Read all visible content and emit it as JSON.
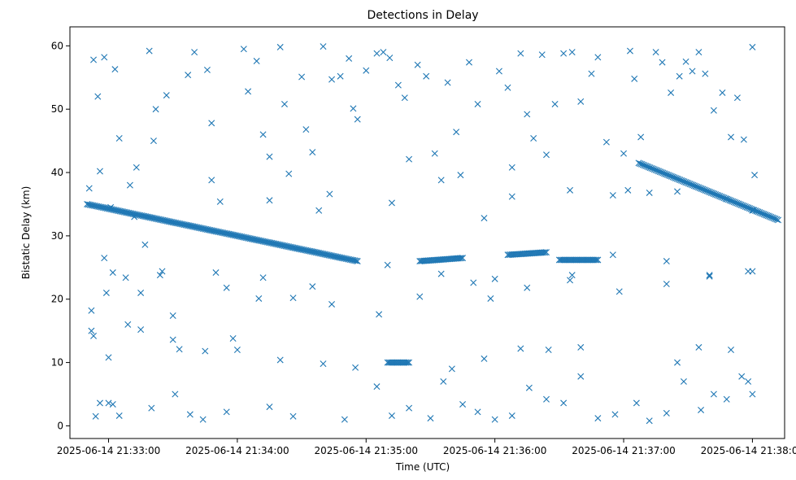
{
  "chart_data": {
    "type": "scatter",
    "title": "Detections in Delay",
    "xlabel": "Time (UTC)",
    "ylabel": "Bistatic Delay (km)",
    "x_unit": "time",
    "xlim": [
      "2025-06-14 21:32:42",
      "2025-06-14 21:38:15"
    ],
    "ylim": [
      -2,
      63
    ],
    "x_ticks": [
      "2025-06-14 21:33:00",
      "2025-06-14 21:34:00",
      "2025-06-14 21:35:00",
      "2025-06-14 21:36:00",
      "2025-06-14 21:37:00",
      "2025-06-14 21:38:00"
    ],
    "y_ticks": [
      0,
      10,
      20,
      30,
      40,
      50,
      60
    ],
    "marker": "x",
    "grid": false,
    "legend": "none",
    "color": "#1f77b4",
    "tracks": [
      {
        "description": "target track 1",
        "x_start": "2025-06-14 21:32:50",
        "x_end": "2025-06-14 21:34:56",
        "y_start": 35.0,
        "y_end": 26.0
      },
      {
        "description": "target track 2",
        "x_start": "2025-06-14 21:35:25",
        "x_end": "2025-06-14 21:35:45",
        "y_start": 26.0,
        "y_end": 26.5
      },
      {
        "description": "target track 3",
        "x_start": "2025-06-14 21:36:06",
        "x_end": "2025-06-14 21:36:24",
        "y_start": 27.0,
        "y_end": 27.4
      },
      {
        "description": "target track 4",
        "x_start": "2025-06-14 21:36:30",
        "x_end": "2025-06-14 21:36:48",
        "y_start": 26.2,
        "y_end": 26.2
      },
      {
        "description": "target track 5",
        "x_start": "2025-06-14 21:37:07",
        "x_end": "2025-06-14 21:38:12",
        "y_start": 41.5,
        "y_end": 32.5
      },
      {
        "description": "clutter band",
        "x_start": "2025-06-14 21:35:10",
        "x_end": "2025-06-14 21:35:20",
        "y_start": 10.0,
        "y_end": 10.0
      }
    ],
    "scatter_points": [
      [
        "21:32:51",
        37.5
      ],
      [
        "21:32:52",
        18.2
      ],
      [
        "21:32:53",
        57.8
      ],
      [
        "21:32:55",
        52.0
      ],
      [
        "21:32:56",
        40.2
      ],
      [
        "21:32:58",
        58.2
      ],
      [
        "21:33:03",
        56.3
      ],
      [
        "21:33:05",
        45.4
      ],
      [
        "21:33:01",
        34.5
      ],
      [
        "21:32:54",
        1.5
      ],
      [
        "21:32:56",
        3.6
      ],
      [
        "21:33:00",
        3.6
      ],
      [
        "21:33:02",
        3.4
      ],
      [
        "21:33:00",
        10.8
      ],
      [
        "21:32:52",
        15.0
      ],
      [
        "21:32:53",
        14.2
      ],
      [
        "21:32:58",
        26.5
      ],
      [
        "21:33:02",
        24.2
      ],
      [
        "21:33:09",
        16.0
      ],
      [
        "21:33:10",
        38.0
      ],
      [
        "21:33:13",
        40.8
      ],
      [
        "21:33:15",
        21.0
      ],
      [
        "21:33:17",
        28.6
      ],
      [
        "21:33:19",
        59.2
      ],
      [
        "21:33:21",
        45.0
      ],
      [
        "21:33:22",
        50.0
      ],
      [
        "21:33:27",
        52.2
      ],
      [
        "21:33:24",
        23.8
      ],
      [
        "21:33:30",
        17.4
      ],
      [
        "21:33:31",
        5.0
      ],
      [
        "21:33:33",
        12.1
      ],
      [
        "21:33:37",
        55.4
      ],
      [
        "21:33:40",
        59.0
      ],
      [
        "21:33:46",
        56.2
      ],
      [
        "21:33:48",
        47.8
      ],
      [
        "21:33:52",
        35.4
      ],
      [
        "21:33:55",
        21.8
      ],
      [
        "21:33:58",
        13.8
      ],
      [
        "21:34:03",
        59.5
      ],
      [
        "21:34:05",
        52.8
      ],
      [
        "21:34:09",
        57.6
      ],
      [
        "21:34:12",
        46.0
      ],
      [
        "21:34:15",
        42.5
      ],
      [
        "21:34:20",
        59.8
      ],
      [
        "21:34:22",
        50.8
      ],
      [
        "21:34:24",
        39.8
      ],
      [
        "21:34:26",
        20.2
      ],
      [
        "21:34:30",
        55.1
      ],
      [
        "21:34:32",
        46.8
      ],
      [
        "21:34:35",
        43.2
      ],
      [
        "21:34:38",
        34.0
      ],
      [
        "21:34:40",
        59.9
      ],
      [
        "21:34:44",
        54.7
      ],
      [
        "21:34:48",
        55.2
      ],
      [
        "21:34:52",
        58.0
      ],
      [
        "21:34:54",
        50.1
      ],
      [
        "21:34:56",
        48.4
      ],
      [
        "21:35:00",
        56.1
      ],
      [
        "21:35:05",
        58.8
      ],
      [
        "21:35:08",
        59.0
      ],
      [
        "21:35:11",
        58.1
      ],
      [
        "21:35:15",
        53.8
      ],
      [
        "21:35:18",
        51.8
      ],
      [
        "21:35:20",
        42.1
      ],
      [
        "21:35:24",
        57.0
      ],
      [
        "21:35:28",
        55.2
      ],
      [
        "21:35:32",
        43.0
      ],
      [
        "21:35:38",
        54.2
      ],
      [
        "21:35:42",
        46.4
      ],
      [
        "21:35:44",
        39.6
      ],
      [
        "21:35:48",
        57.4
      ],
      [
        "21:35:52",
        50.8
      ],
      [
        "21:35:55",
        32.8
      ],
      [
        "21:35:58",
        20.1
      ],
      [
        "21:36:02",
        56.0
      ],
      [
        "21:36:06",
        53.4
      ],
      [
        "21:36:08",
        40.8
      ],
      [
        "21:36:12",
        58.8
      ],
      [
        "21:36:15",
        49.2
      ],
      [
        "21:36:18",
        45.4
      ],
      [
        "21:36:22",
        58.6
      ],
      [
        "21:36:24",
        42.8
      ],
      [
        "21:36:28",
        50.8
      ],
      [
        "21:36:32",
        58.8
      ],
      [
        "21:36:36",
        59.0
      ],
      [
        "21:36:40",
        51.2
      ],
      [
        "21:36:45",
        55.6
      ],
      [
        "21:36:48",
        58.2
      ],
      [
        "21:36:52",
        44.8
      ],
      [
        "21:36:55",
        36.4
      ],
      [
        "21:37:00",
        43.0
      ],
      [
        "21:37:03",
        59.2
      ],
      [
        "21:37:05",
        54.8
      ],
      [
        "21:37:08",
        45.6
      ],
      [
        "21:37:12",
        36.8
      ],
      [
        "21:37:15",
        59.0
      ],
      [
        "21:37:18",
        57.4
      ],
      [
        "21:37:22",
        52.6
      ],
      [
        "21:37:26",
        55.2
      ],
      [
        "21:37:29",
        57.5
      ],
      [
        "21:37:32",
        56.0
      ],
      [
        "21:37:35",
        59.0
      ],
      [
        "21:37:38",
        55.6
      ],
      [
        "21:37:42",
        49.8
      ],
      [
        "21:37:46",
        52.6
      ],
      [
        "21:37:50",
        45.6
      ],
      [
        "21:37:53",
        51.8
      ],
      [
        "21:37:56",
        45.2
      ],
      [
        "21:38:00",
        59.8
      ],
      [
        "21:38:01",
        39.6
      ],
      [
        "21:33:05",
        1.6
      ],
      [
        "21:33:20",
        2.8
      ],
      [
        "21:33:38",
        1.8
      ],
      [
        "21:33:44",
        1.0
      ],
      [
        "21:33:55",
        2.2
      ],
      [
        "21:34:15",
        3.0
      ],
      [
        "21:34:26",
        1.5
      ],
      [
        "21:34:50",
        1.0
      ],
      [
        "21:35:05",
        6.2
      ],
      [
        "21:35:12",
        1.6
      ],
      [
        "21:35:20",
        2.8
      ],
      [
        "21:35:30",
        1.2
      ],
      [
        "21:35:36",
        7.0
      ],
      [
        "21:35:45",
        3.4
      ],
      [
        "21:35:52",
        2.2
      ],
      [
        "21:36:00",
        1.0
      ],
      [
        "21:36:08",
        1.6
      ],
      [
        "21:36:16",
        6.0
      ],
      [
        "21:36:24",
        4.2
      ],
      [
        "21:36:32",
        3.6
      ],
      [
        "21:36:40",
        7.8
      ],
      [
        "21:36:48",
        1.2
      ],
      [
        "21:36:56",
        1.8
      ],
      [
        "21:37:06",
        3.6
      ],
      [
        "21:37:12",
        0.8
      ],
      [
        "21:37:20",
        2.0
      ],
      [
        "21:37:28",
        7.0
      ],
      [
        "21:37:36",
        2.5
      ],
      [
        "21:37:42",
        5.0
      ],
      [
        "21:37:48",
        4.2
      ],
      [
        "21:37:55",
        7.8
      ],
      [
        "21:38:00",
        5.0
      ],
      [
        "21:37:58",
        7.0
      ],
      [
        "21:37:35",
        12.4
      ],
      [
        "21:37:50",
        12.0
      ],
      [
        "21:37:25",
        10.0
      ],
      [
        "21:36:40",
        12.4
      ],
      [
        "21:36:25",
        12.0
      ],
      [
        "21:36:12",
        12.2
      ],
      [
        "21:35:55",
        10.6
      ],
      [
        "21:35:40",
        9.0
      ],
      [
        "21:34:55",
        9.2
      ],
      [
        "21:34:40",
        9.8
      ],
      [
        "21:34:20",
        10.4
      ],
      [
        "21:34:00",
        12.0
      ],
      [
        "21:33:45",
        11.8
      ],
      [
        "21:33:30",
        13.6
      ],
      [
        "21:33:15",
        15.2
      ],
      [
        "21:34:10",
        20.1
      ],
      [
        "21:34:44",
        19.2
      ],
      [
        "21:35:06",
        17.6
      ],
      [
        "21:35:25",
        20.4
      ],
      [
        "21:35:50",
        22.6
      ],
      [
        "21:36:15",
        21.8
      ],
      [
        "21:36:36",
        23.8
      ],
      [
        "21:36:58",
        21.2
      ],
      [
        "21:37:20",
        22.4
      ],
      [
        "21:37:40",
        23.6
      ],
      [
        "21:38:00",
        24.4
      ],
      [
        "21:37:58",
        24.4
      ],
      [
        "21:37:40",
        23.8
      ],
      [
        "21:37:20",
        26.0
      ],
      [
        "21:36:55",
        27.0
      ],
      [
        "21:36:35",
        23.0
      ],
      [
        "21:36:00",
        23.2
      ],
      [
        "21:35:35",
        24.0
      ],
      [
        "21:35:10",
        25.4
      ],
      [
        "21:34:35",
        22.0
      ],
      [
        "21:34:12",
        23.4
      ],
      [
        "21:33:50",
        24.2
      ],
      [
        "21:33:25",
        24.4
      ],
      [
        "21:33:08",
        23.4
      ],
      [
        "21:32:59",
        21.0
      ],
      [
        "21:33:12",
        33.0
      ],
      [
        "21:33:48",
        38.8
      ],
      [
        "21:34:15",
        35.6
      ],
      [
        "21:34:43",
        36.6
      ],
      [
        "21:35:12",
        35.2
      ],
      [
        "21:35:35",
        38.8
      ],
      [
        "21:36:08",
        36.2
      ],
      [
        "21:36:35",
        37.2
      ],
      [
        "21:37:02",
        37.2
      ],
      [
        "21:37:25",
        37.0
      ],
      [
        "21:37:48",
        35.8
      ],
      [
        "21:38:00",
        34.0
      ]
    ]
  }
}
